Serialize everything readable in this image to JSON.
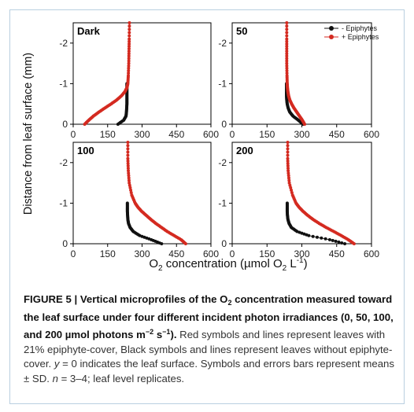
{
  "ylabel": "Distance from leaf surface (mm)",
  "xlabel": {
    "a": "O",
    "sub": "2",
    "b": " concentration (",
    "mu": "µ",
    "c": "mol O",
    "sub2": "2",
    "d": " L",
    "sup": "-1",
    "e": ")"
  },
  "legend": {
    "black": "- Epiphytes",
    "red": "+ Epiphytes"
  },
  "colors": {
    "black": "#111111",
    "red": "#d42a20",
    "axis": "#000000"
  },
  "chart_data": [
    {
      "type": "line",
      "panel_label": "Dark",
      "xlim": [
        0,
        600
      ],
      "ylim": [
        0,
        -2.5
      ],
      "xticks": [
        "0",
        "150",
        "300",
        "450",
        "600"
      ],
      "yticks": [
        "0",
        "-1",
        "-2"
      ],
      "series": [
        {
          "name": "- Epiphytes",
          "x": [
            195,
            220,
            230,
            232,
            233,
            234,
            234,
            234,
            234,
            234,
            234
          ],
          "y": [
            0,
            -0.1,
            -0.2,
            -0.3,
            -0.4,
            -0.5,
            -0.6,
            -0.7,
            -0.8,
            -0.9,
            -1.0
          ]
        },
        {
          "name": "+ Epiphytes",
          "x": [
            50,
            68,
            88,
            112,
            138,
            165,
            190,
            210,
            225,
            234,
            238,
            240,
            242,
            243,
            244,
            245
          ],
          "y": [
            0,
            -0.1,
            -0.2,
            -0.3,
            -0.4,
            -0.5,
            -0.6,
            -0.7,
            -0.8,
            -0.9,
            -1.0,
            -1.2,
            -1.5,
            -1.8,
            -2.1,
            -2.5
          ]
        }
      ]
    },
    {
      "type": "line",
      "panel_label": "50",
      "xlim": [
        0,
        600
      ],
      "ylim": [
        0,
        -2.5
      ],
      "xticks": [
        "0",
        "150",
        "300",
        "450",
        "600"
      ],
      "yticks": [
        "0",
        "-1",
        "-2"
      ],
      "series": [
        {
          "name": "- Epiphytes",
          "x": [
            305,
            285,
            262,
            248,
            241,
            237,
            235,
            234,
            234,
            234,
            234
          ],
          "y": [
            0,
            -0.1,
            -0.2,
            -0.3,
            -0.4,
            -0.5,
            -0.6,
            -0.7,
            -0.8,
            -0.9,
            -1.0
          ]
        },
        {
          "name": "+ Epiphytes",
          "x": [
            312,
            302,
            290,
            278,
            266,
            256,
            248,
            243,
            240,
            238,
            237,
            236,
            235,
            235,
            235,
            235
          ],
          "y": [
            0,
            -0.1,
            -0.2,
            -0.3,
            -0.4,
            -0.5,
            -0.6,
            -0.7,
            -0.8,
            -0.9,
            -1.0,
            -1.2,
            -1.5,
            -1.8,
            -2.1,
            -2.5
          ]
        }
      ]
    },
    {
      "type": "line",
      "panel_label": "100",
      "xlim": [
        0,
        600
      ],
      "ylim": [
        0,
        -2.5
      ],
      "xticks": [
        "0",
        "150",
        "300",
        "450",
        "600"
      ],
      "yticks": [
        "0",
        "-1",
        "-2"
      ],
      "series": [
        {
          "name": "- Epiphytes",
          "x": [
            385,
            340,
            290,
            262,
            248,
            241,
            238,
            237,
            236,
            236,
            236
          ],
          "y": [
            0,
            -0.1,
            -0.2,
            -0.3,
            -0.4,
            -0.5,
            -0.6,
            -0.7,
            -0.8,
            -0.9,
            -1.0
          ]
        },
        {
          "name": "+ Epiphytes",
          "x": [
            490,
            470,
            440,
            410,
            385,
            360,
            338,
            318,
            298,
            282,
            270,
            255,
            244,
            240,
            238,
            238
          ],
          "y": [
            0,
            -0.1,
            -0.2,
            -0.3,
            -0.4,
            -0.5,
            -0.6,
            -0.7,
            -0.8,
            -0.9,
            -1.0,
            -1.2,
            -1.5,
            -1.8,
            -2.1,
            -2.5
          ]
        }
      ]
    },
    {
      "type": "line",
      "panel_label": "200",
      "xlim": [
        0,
        600
      ],
      "ylim": [
        0,
        -2.5
      ],
      "xticks": [
        "0",
        "150",
        "300",
        "450",
        "600"
      ],
      "yticks": [
        "0",
        "-1",
        "-2"
      ],
      "series": [
        {
          "name": "- Epiphytes",
          "x": [
            485,
            420,
            330,
            280,
            255,
            245,
            240,
            238,
            237,
            237,
            237
          ],
          "y": [
            0,
            -0.1,
            -0.2,
            -0.3,
            -0.4,
            -0.5,
            -0.6,
            -0.7,
            -0.8,
            -0.9,
            -1.0
          ]
        },
        {
          "name": "+ Epiphytes",
          "x": [
            525,
            500,
            470,
            438,
            405,
            375,
            348,
            325,
            305,
            288,
            275,
            260,
            246,
            241,
            239,
            239
          ],
          "y": [
            0,
            -0.1,
            -0.2,
            -0.3,
            -0.4,
            -0.5,
            -0.6,
            -0.7,
            -0.8,
            -0.9,
            -1.0,
            -1.2,
            -1.5,
            -1.8,
            -2.1,
            -2.5
          ]
        }
      ]
    }
  ],
  "caption": {
    "title_a": "FIGURE 5 | Vertical microprofiles of the O",
    "title_sub": "2",
    "title_b": " concentration measured toward the leaf surface under four different incident photon irradiances (0, 50, 100, and 200 ",
    "title_mu": "µ",
    "title_c": "mol photons m",
    "title_sup": "−2",
    "title_d": " s",
    "body_a": "−1). Red symbols and lines represent leaves with 21% epiphyte-cover, Black symbols and lines represent leaves without epiphyte-cover. ",
    "y_var": "y",
    "body_b": " = 0 indicates the leaf surface. Symbols and errors bars represent means ± SD. ",
    "n_var": "n",
    "body_c": " = 3–4; leaf level replicates."
  }
}
